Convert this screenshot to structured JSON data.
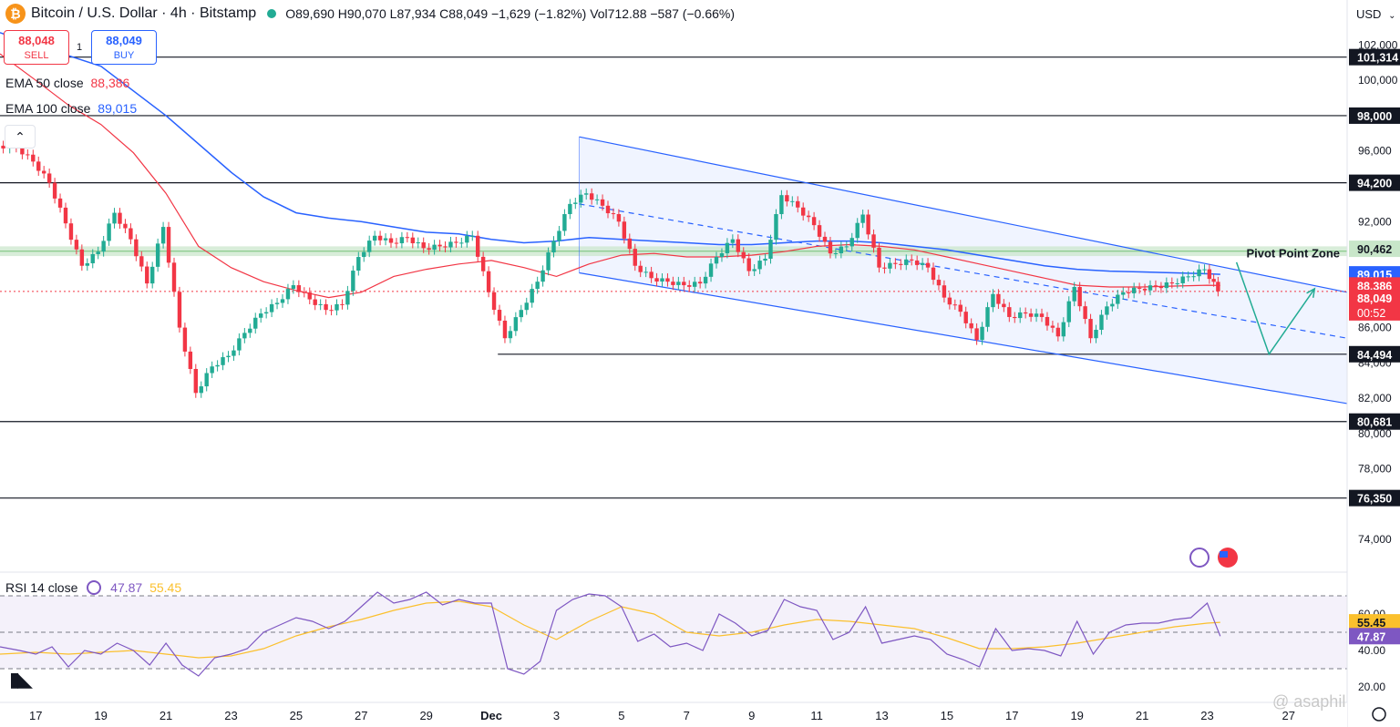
{
  "header": {
    "title": "Bitcoin / U.S. Dollar · 4h · Bitstamp",
    "open_label": "O",
    "open": "89,690",
    "high_label": "H",
    "high": "90,070",
    "low_label": "L",
    "low": "87,934",
    "close_label": "C",
    "close": "88,049",
    "change": "−1,629 (−1.82%)",
    "vol_label": "Vol",
    "vol": "712.88",
    "vol_change": "−587 (−0.66%)"
  },
  "trade": {
    "sell_price": "88,048",
    "sell_label": "SELL",
    "spread": "1",
    "buy_price": "88,049",
    "buy_label": "BUY"
  },
  "indicators": {
    "ema50_label": "EMA 50 close",
    "ema50_value": "88,386",
    "ema100_label": "EMA 100 close",
    "ema100_value": "89,015",
    "rsi_label": "RSI 14 close",
    "rsi_value": "47.87",
    "rsi_ma_value": "55.45"
  },
  "currency": "USD",
  "annotation": "Pivot Point Zone",
  "watermark": "@ asaphil",
  "colors": {
    "up": "#22ab94",
    "down": "#f23645",
    "ema50": "#f23645",
    "ema100": "#2962ff",
    "rsi": "#7e57c2",
    "rsi_ma": "#fbc02d",
    "channel": "#2962ff"
  },
  "chart_data": {
    "type": "candlestick",
    "price_axis": {
      "range": [
        73600,
        103000
      ],
      "ticks": [
        "102,000",
        "100,000",
        "96,000",
        "92,000",
        "86,000",
        "84,000",
        "82,000",
        "80,000",
        "78,000",
        "74,000"
      ],
      "tick_values": [
        102000,
        100000,
        96000,
        92000,
        86000,
        84000,
        82000,
        80000,
        78000,
        74000
      ]
    },
    "x_axis": {
      "ticks": [
        "17",
        "19",
        "21",
        "23",
        "25",
        "27",
        "29",
        "Dec",
        "3",
        "5",
        "7",
        "9",
        "11",
        "13",
        "15",
        "17",
        "19",
        "21",
        "23",
        "27"
      ],
      "positions": [
        0,
        2,
        4,
        6,
        8,
        10,
        12,
        14,
        16,
        18,
        20,
        22,
        24,
        26,
        28,
        30,
        32,
        34,
        36,
        38.5
      ],
      "unit": "days from Nov 17",
      "range": [
        -1.1,
        40.3
      ]
    },
    "levels": [
      {
        "value": 101314,
        "label": "101,314"
      },
      {
        "value": 98000,
        "label": "98,000"
      },
      {
        "value": 94200,
        "label": "94,200"
      },
      {
        "value": 84494,
        "label": "84,494"
      },
      {
        "value": 80681,
        "label": "80,681"
      },
      {
        "value": 76350,
        "label": "76,350"
      }
    ],
    "price_labels": [
      {
        "value": 90462,
        "label": "90,462"
      },
      {
        "value": 89015,
        "label": "89,015"
      },
      {
        "value": 88386,
        "label": "88,386"
      },
      {
        "value": 88049,
        "label": "88,049"
      }
    ],
    "countdown": "00:52",
    "pivot_zone": [
      90050,
      90600
    ],
    "close_value": 88049,
    "support_start_day": 14.2,
    "channel": {
      "upper": [
        [
          16.7,
          96800
        ],
        [
          40.3,
          88000
        ]
      ],
      "lower": [
        [
          16.7,
          89100
        ],
        [
          40.3,
          81700
        ]
      ],
      "mid": [
        [
          16.7,
          93000
        ],
        [
          40.3,
          85400
        ]
      ]
    },
    "projection": [
      [
        36.9,
        89700
      ],
      [
        37.9,
        84500
      ],
      [
        39.3,
        88200
      ]
    ],
    "close_path": [
      [
        -1.1,
        96300
      ],
      [
        -0.5,
        96200
      ],
      [
        0,
        95400
      ],
      [
        0.5,
        94200
      ],
      [
        1,
        91900
      ],
      [
        1.5,
        89500
      ],
      [
        2,
        90300
      ],
      [
        2.5,
        92500
      ],
      [
        3,
        91000
      ],
      [
        3.5,
        88500
      ],
      [
        4,
        91700
      ],
      [
        4.5,
        86000
      ],
      [
        5,
        82300
      ],
      [
        5.5,
        83800
      ],
      [
        6,
        84400
      ],
      [
        6.5,
        85700
      ],
      [
        7,
        86800
      ],
      [
        7.5,
        87400
      ],
      [
        8,
        88400
      ],
      [
        8.5,
        87600
      ],
      [
        9,
        87000
      ],
      [
        9.5,
        87300
      ],
      [
        10,
        90000
      ],
      [
        10.5,
        91200
      ],
      [
        11,
        90800
      ],
      [
        11.5,
        91100
      ],
      [
        12,
        90500
      ],
      [
        12.5,
        90600
      ],
      [
        13,
        90800
      ],
      [
        13.5,
        91200
      ],
      [
        14,
        88000
      ],
      [
        14.5,
        85400
      ],
      [
        15,
        87000
      ],
      [
        15.5,
        88600
      ],
      [
        16,
        90900
      ],
      [
        16.5,
        93000
      ],
      [
        17,
        93600
      ],
      [
        17.5,
        92900
      ],
      [
        18,
        92000
      ],
      [
        18.5,
        89500
      ],
      [
        19,
        88800
      ],
      [
        19.5,
        88600
      ],
      [
        20,
        88400
      ],
      [
        20.5,
        88500
      ],
      [
        21,
        90000
      ],
      [
        21.5,
        91000
      ],
      [
        22,
        89200
      ],
      [
        22.5,
        89900
      ],
      [
        23,
        93500
      ],
      [
        23.5,
        92800
      ],
      [
        24,
        91800
      ],
      [
        24.5,
        90200
      ],
      [
        25,
        90600
      ],
      [
        25.5,
        92400
      ],
      [
        26,
        89400
      ],
      [
        26.5,
        89600
      ],
      [
        27,
        89800
      ],
      [
        27.5,
        89400
      ],
      [
        28,
        87700
      ],
      [
        28.5,
        86900
      ],
      [
        29,
        85300
      ],
      [
        29.5,
        87900
      ],
      [
        30,
        86600
      ],
      [
        30.5,
        86800
      ],
      [
        31,
        86600
      ],
      [
        31.5,
        85500
      ],
      [
        32,
        88300
      ],
      [
        32.5,
        85400
      ],
      [
        33,
        87200
      ],
      [
        33.5,
        88000
      ],
      [
        34,
        88200
      ],
      [
        34.5,
        88300
      ],
      [
        35,
        88500
      ],
      [
        35.5,
        88900
      ],
      [
        36,
        89300
      ],
      [
        36.4,
        88049
      ]
    ],
    "ema50_path": [
      [
        -1.1,
        101500
      ],
      [
        0,
        100000
      ],
      [
        1,
        98600
      ],
      [
        2,
        97500
      ],
      [
        3,
        95900
      ],
      [
        4,
        93600
      ],
      [
        5,
        90600
      ],
      [
        6,
        89400
      ],
      [
        7,
        88600
      ],
      [
        8,
        88100
      ],
      [
        9,
        87700
      ],
      [
        10,
        88000
      ],
      [
        11,
        88900
      ],
      [
        12,
        89300
      ],
      [
        13,
        89600
      ],
      [
        14,
        89800
      ],
      [
        15,
        89400
      ],
      [
        16,
        88900
      ],
      [
        17,
        89600
      ],
      [
        18,
        90100
      ],
      [
        19,
        90200
      ],
      [
        20,
        90000
      ],
      [
        21,
        90000
      ],
      [
        22,
        90100
      ],
      [
        23,
        90300
      ],
      [
        24,
        90600
      ],
      [
        25,
        90700
      ],
      [
        26,
        90600
      ],
      [
        27,
        90400
      ],
      [
        28,
        90000
      ],
      [
        29,
        89600
      ],
      [
        30,
        89200
      ],
      [
        31,
        88800
      ],
      [
        32,
        88400
      ],
      [
        33,
        88300
      ],
      [
        34,
        88300
      ],
      [
        35,
        88350
      ],
      [
        36,
        88400
      ],
      [
        36.4,
        88386
      ]
    ],
    "ema100_path": [
      [
        -1.1,
        102700
      ],
      [
        0,
        102000
      ],
      [
        2,
        100800
      ],
      [
        4,
        98000
      ],
      [
        6,
        94800
      ],
      [
        7,
        93400
      ],
      [
        8,
        92500
      ],
      [
        9,
        92200
      ],
      [
        10,
        92000
      ],
      [
        11,
        91700
      ],
      [
        12,
        91400
      ],
      [
        13,
        91300
      ],
      [
        14,
        91000
      ],
      [
        15,
        90800
      ],
      [
        16,
        90900
      ],
      [
        17,
        91100
      ],
      [
        18,
        91000
      ],
      [
        19,
        90900
      ],
      [
        20,
        90800
      ],
      [
        21,
        90700
      ],
      [
        22,
        90700
      ],
      [
        23,
        90800
      ],
      [
        24,
        90900
      ],
      [
        25,
        90900
      ],
      [
        26,
        90800
      ],
      [
        27,
        90600
      ],
      [
        28,
        90400
      ],
      [
        29,
        90100
      ],
      [
        30,
        89800
      ],
      [
        31,
        89500
      ],
      [
        32,
        89300
      ],
      [
        33,
        89200
      ],
      [
        34,
        89150
      ],
      [
        35,
        89100
      ],
      [
        36,
        89050
      ],
      [
        36.4,
        89015
      ]
    ],
    "rsi": {
      "range": [
        17,
        83
      ],
      "levels": [
        70,
        50,
        30
      ],
      "ticks": [
        "60.00",
        "40.00",
        "20.00"
      ],
      "tick_values": [
        60,
        40,
        20
      ],
      "value_label": "47.87",
      "ma_label": "55.45",
      "value": 47.87,
      "ma": 55.45,
      "path": [
        [
          -1.1,
          42
        ],
        [
          -0.5,
          40
        ],
        [
          0,
          38
        ],
        [
          0.5,
          42
        ],
        [
          1,
          31
        ],
        [
          1.5,
          40
        ],
        [
          2,
          38
        ],
        [
          2.5,
          44
        ],
        [
          3,
          40
        ],
        [
          3.5,
          32
        ],
        [
          4,
          44
        ],
        [
          4.5,
          32
        ],
        [
          5,
          26
        ],
        [
          5.5,
          36
        ],
        [
          6,
          38
        ],
        [
          6.5,
          41
        ],
        [
          7,
          50
        ],
        [
          7.5,
          54
        ],
        [
          8,
          58
        ],
        [
          8.5,
          56
        ],
        [
          9,
          52
        ],
        [
          9.5,
          56
        ],
        [
          10,
          64
        ],
        [
          10.5,
          72
        ],
        [
          11,
          66
        ],
        [
          11.5,
          68
        ],
        [
          12,
          72
        ],
        [
          12.5,
          65
        ],
        [
          13,
          68
        ],
        [
          13.5,
          66
        ],
        [
          14,
          66
        ],
        [
          14.5,
          30
        ],
        [
          15,
          27
        ],
        [
          15.5,
          34
        ],
        [
          16,
          62
        ],
        [
          16.5,
          68
        ],
        [
          17,
          71
        ],
        [
          17.5,
          70
        ],
        [
          18,
          64
        ],
        [
          18.5,
          45
        ],
        [
          19,
          49
        ],
        [
          19.5,
          42
        ],
        [
          20,
          44
        ],
        [
          20.5,
          40
        ],
        [
          21,
          60
        ],
        [
          21.5,
          55
        ],
        [
          22,
          48
        ],
        [
          22.5,
          51
        ],
        [
          23,
          68
        ],
        [
          23.5,
          64
        ],
        [
          24,
          62
        ],
        [
          24.5,
          46
        ],
        [
          25,
          50
        ],
        [
          25.5,
          64
        ],
        [
          26,
          44
        ],
        [
          26.5,
          46
        ],
        [
          27,
          48
        ],
        [
          27.5,
          46
        ],
        [
          28,
          38
        ],
        [
          28.5,
          35
        ],
        [
          29,
          31
        ],
        [
          29.5,
          52
        ],
        [
          30,
          40
        ],
        [
          30.5,
          41
        ],
        [
          31,
          40
        ],
        [
          31.5,
          37
        ],
        [
          32,
          56
        ],
        [
          32.5,
          38
        ],
        [
          33,
          50
        ],
        [
          33.5,
          54
        ],
        [
          34,
          55
        ],
        [
          34.5,
          55
        ],
        [
          35,
          57
        ],
        [
          35.5,
          58
        ],
        [
          36,
          66
        ],
        [
          36.4,
          47.87
        ]
      ],
      "ma_path": [
        [
          -1.1,
          38
        ],
        [
          0,
          39
        ],
        [
          1,
          38
        ],
        [
          2,
          39
        ],
        [
          3,
          40
        ],
        [
          4,
          38
        ],
        [
          5,
          36
        ],
        [
          6,
          37
        ],
        [
          7,
          41
        ],
        [
          8,
          48
        ],
        [
          9,
          53
        ],
        [
          10,
          57
        ],
        [
          11,
          62
        ],
        [
          12,
          66
        ],
        [
          13,
          67
        ],
        [
          14,
          64
        ],
        [
          15,
          54
        ],
        [
          16,
          46
        ],
        [
          17,
          56
        ],
        [
          18,
          64
        ],
        [
          19,
          60
        ],
        [
          20,
          50
        ],
        [
          21,
          48
        ],
        [
          22,
          50
        ],
        [
          23,
          54
        ],
        [
          24,
          57
        ],
        [
          25,
          56
        ],
        [
          26,
          54
        ],
        [
          27,
          52
        ],
        [
          28,
          47
        ],
        [
          29,
          41
        ],
        [
          30,
          41
        ],
        [
          31,
          42
        ],
        [
          32,
          44
        ],
        [
          33,
          47
        ],
        [
          34,
          50
        ],
        [
          35,
          53
        ],
        [
          36,
          55
        ],
        [
          36.4,
          55.45
        ]
      ]
    }
  }
}
